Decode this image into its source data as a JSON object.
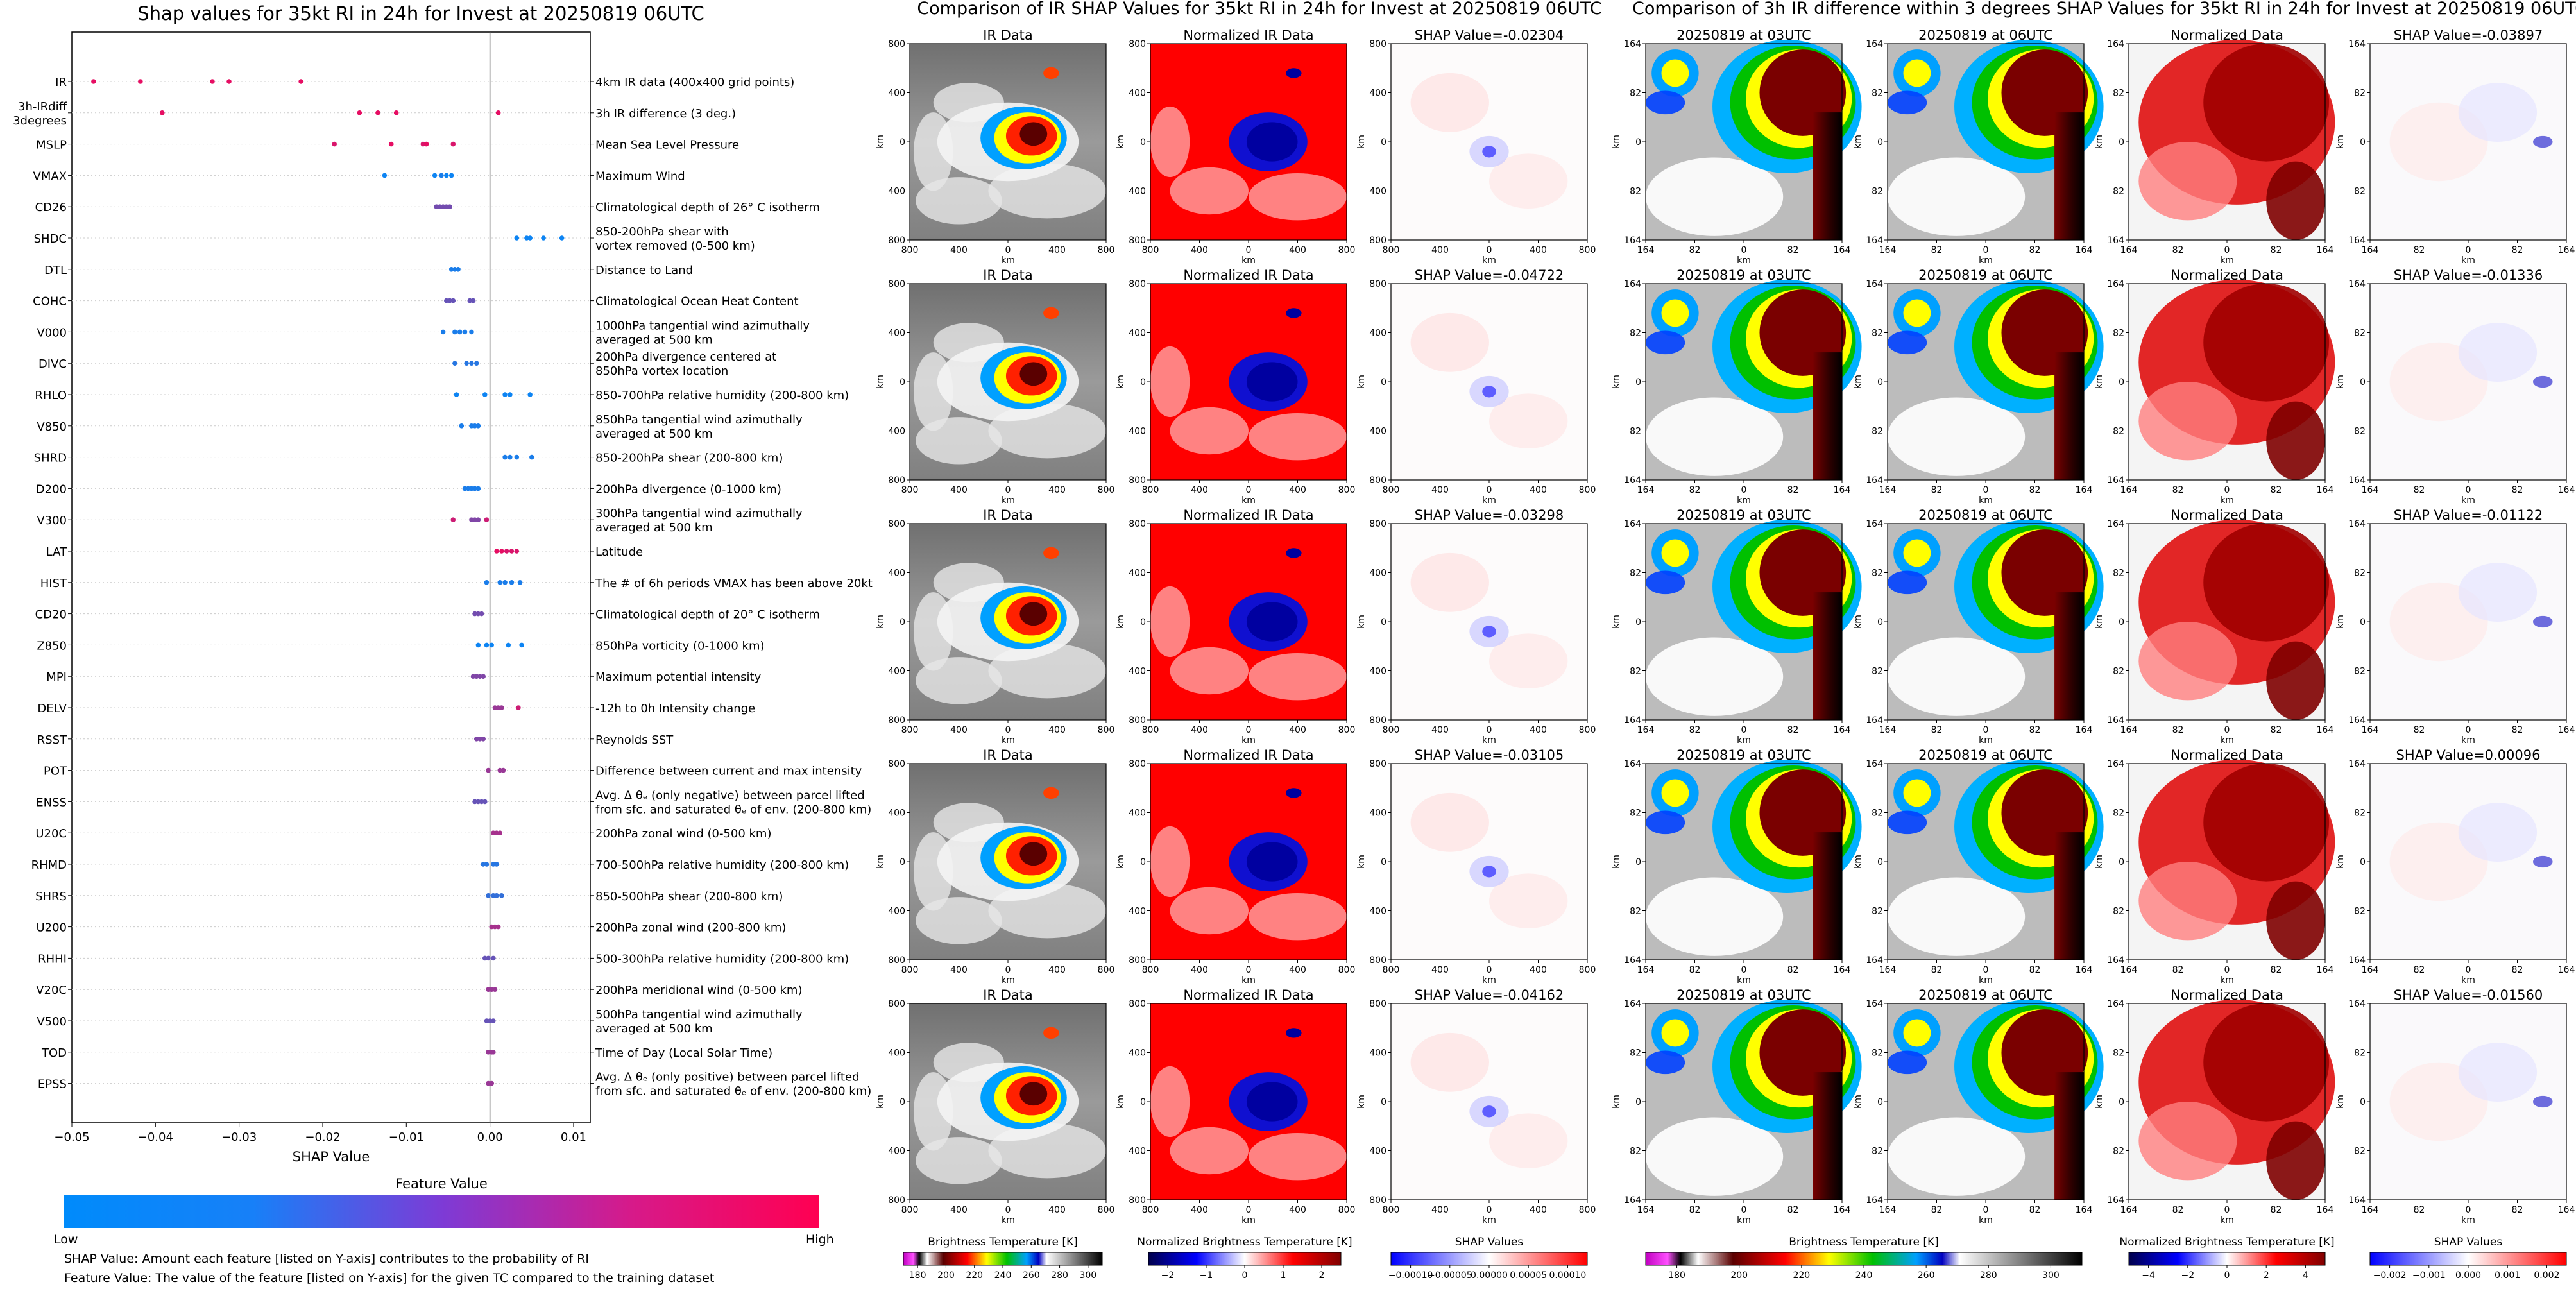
{
  "shap_panel": {
    "title": "Shap values for 35kt RI in 24h for Invest at 20250819 06UTC",
    "xlabel": "SHAP Value",
    "colorbar_title": "Feature Value",
    "colorbar_low": "Low",
    "colorbar_high": "High",
    "low_color": "#008bfb",
    "high_color": "#ff0052",
    "footnote_1": "SHAP Value: Amount each feature [listed on Y-axis] contributes to the probability of RI",
    "footnote_2": "Feature Value: The value of the feature [listed on Y-axis] for the given TC compared to the training dataset",
    "xticks": [
      "−0.05",
      "−0.04",
      "−0.03",
      "−0.02",
      "−0.01",
      "0.00",
      "0.01"
    ]
  },
  "ir_panel": {
    "title": "Comparison of IR SHAP Values for 35kt RI in 24h for Invest at 20250819 06UTC",
    "col_titles": [
      "IR Data",
      "Normalized IR Data"
    ],
    "shap_titles": [
      "SHAP Value=-0.02304",
      "SHAP Value=-0.04722",
      "SHAP Value=-0.03298",
      "SHAP Value=-0.03105",
      "SHAP Value=-0.04162"
    ],
    "ticks": [
      "800",
      "400",
      "0",
      "400",
      "800"
    ],
    "axis_label": "km",
    "cb_labels": [
      "Brightness Temperature [K]",
      "Normalized Brightness Temperature [K]",
      "SHAP Values"
    ],
    "cb_ticks": [
      [
        "180",
        "200",
        "220",
        "240",
        "260",
        "280",
        "300"
      ],
      [
        "−2",
        "−1",
        "0",
        "1",
        "2"
      ],
      [
        "−0.00010",
        "−0.00005",
        "0.00000",
        "0.00005",
        "0.00010"
      ]
    ]
  },
  "diff_panel": {
    "title": "Comparison of 3h IR difference within 3 degrees SHAP Values for 35kt RI in 24h for Invest at 20250819 06UTC",
    "col_titles": [
      "20250819 at 03UTC",
      "20250819 at 06UTC",
      "Normalized Data"
    ],
    "shap_titles": [
      "SHAP Value=-0.03897",
      "SHAP Value=-0.01336",
      "SHAP Value=-0.01122",
      "SHAP Value=0.00096",
      "SHAP Value=-0.01560"
    ],
    "ticks": [
      "164",
      "82",
      "0",
      "82",
      "164"
    ],
    "axis_label": "km",
    "cb_labels": [
      "Brightness Temperature [K]",
      "Normalized Brightness Temperature [K]",
      "SHAP Values"
    ],
    "cb_ticks": [
      [
        "180",
        "200",
        "220",
        "240",
        "260",
        "280",
        "300"
      ],
      [
        "−4",
        "−2",
        "0",
        "2",
        "4"
      ],
      [
        "−0.002",
        "−0.001",
        "0.000",
        "0.001",
        "0.002"
      ]
    ]
  },
  "chart_data": {
    "type": "scatter",
    "title": "Shap values for 35kt RI in 24h for Invest at 20250819 06UTC",
    "xlabel": "SHAP Value",
    "xlim": [
      -0.05,
      0.012
    ],
    "features": [
      {
        "code": "IR",
        "desc": [
          "4km IR data (400x400 grid points)"
        ],
        "points": [
          [
            -0.0474,
            0.9
          ],
          [
            -0.0418,
            0.9
          ],
          [
            -0.0332,
            0.9
          ],
          [
            -0.0312,
            0.9
          ],
          [
            -0.0226,
            0.9
          ]
        ]
      },
      {
        "code": [
          "3h-IRdiff",
          "3degrees"
        ],
        "desc": [
          "3h IR difference (3 deg.)"
        ],
        "points": [
          [
            -0.0392,
            0.9
          ],
          [
            -0.0156,
            0.9
          ],
          [
            -0.0134,
            0.9
          ],
          [
            -0.0112,
            0.9
          ],
          [
            0.001,
            0.9
          ]
        ]
      },
      {
        "code": "MSLP",
        "desc": [
          "Mean Sea Level Pressure"
        ],
        "points": [
          [
            -0.0186,
            0.85
          ],
          [
            -0.0118,
            0.9
          ],
          [
            -0.008,
            0.85
          ],
          [
            -0.0076,
            0.9
          ],
          [
            -0.0044,
            0.85
          ]
        ]
      },
      {
        "code": "VMAX",
        "desc": [
          "Maximum Wind"
        ],
        "points": [
          [
            -0.0126,
            0.05
          ],
          [
            -0.0066,
            0.05
          ],
          [
            -0.0058,
            0.1
          ],
          [
            -0.0052,
            0.05
          ],
          [
            -0.0046,
            0.05
          ]
        ]
      },
      {
        "code": "CD26",
        "desc": [
          "Climatological depth of 26° C isotherm"
        ],
        "points": [
          [
            -0.0064,
            0.45
          ],
          [
            -0.006,
            0.45
          ],
          [
            -0.0056,
            0.45
          ],
          [
            -0.0052,
            0.45
          ],
          [
            -0.0048,
            0.45
          ]
        ]
      },
      {
        "code": "SHDC",
        "desc": [
          "850-200hPa shear with",
          "vortex removed (0-500 km)"
        ],
        "points": [
          [
            0.0032,
            0.05
          ],
          [
            0.0044,
            0.05
          ],
          [
            0.0048,
            0.05
          ],
          [
            0.0064,
            0.05
          ],
          [
            0.0086,
            0.05
          ]
        ]
      },
      {
        "code": "DTL",
        "desc": [
          "Distance to Land"
        ],
        "points": [
          [
            -0.0046,
            0.1
          ],
          [
            -0.0042,
            0.1
          ],
          [
            -0.0038,
            0.1
          ]
        ]
      },
      {
        "code": "COHC",
        "desc": [
          "Climatological Ocean Heat Content"
        ],
        "points": [
          [
            -0.0052,
            0.4
          ],
          [
            -0.0048,
            0.4
          ],
          [
            -0.0044,
            0.4
          ],
          [
            -0.0024,
            0.4
          ],
          [
            -0.002,
            0.4
          ]
        ]
      },
      {
        "code": "V000",
        "desc": [
          "1000hPa tangential wind azimuthally",
          "averaged at 500 km"
        ],
        "points": [
          [
            -0.0056,
            0.1
          ],
          [
            -0.0042,
            0.1
          ],
          [
            -0.0036,
            0.1
          ],
          [
            -0.003,
            0.1
          ],
          [
            -0.0022,
            0.1
          ]
        ]
      },
      {
        "code": "DIVC",
        "desc": [
          "200hPa divergence centered at",
          "850hPa vortex location"
        ],
        "points": [
          [
            -0.0042,
            0.15
          ],
          [
            -0.0028,
            0.15
          ],
          [
            -0.0022,
            0.15
          ],
          [
            -0.0016,
            0.15
          ]
        ]
      },
      {
        "code": "RHLO",
        "desc": [
          "850-700hPa relative humidity (200-800 km)"
        ],
        "points": [
          [
            -0.004,
            0.05
          ],
          [
            -0.0006,
            0.05
          ],
          [
            0.0018,
            0.05
          ],
          [
            0.0024,
            0.05
          ],
          [
            0.0048,
            0.05
          ]
        ]
      },
      {
        "code": "V850",
        "desc": [
          "850hPa tangential wind azimuthally",
          "averaged at 500 km"
        ],
        "points": [
          [
            -0.0034,
            0.1
          ],
          [
            -0.0022,
            0.1
          ],
          [
            -0.0018,
            0.1
          ],
          [
            -0.0014,
            0.1
          ]
        ]
      },
      {
        "code": "SHRD",
        "desc": [
          "850-200hPa shear (200-800 km)"
        ],
        "points": [
          [
            0.0018,
            0.1
          ],
          [
            0.0024,
            0.1
          ],
          [
            0.0032,
            0.1
          ],
          [
            0.005,
            0.1
          ]
        ]
      },
      {
        "code": "D200",
        "desc": [
          "200hPa divergence (0-1000 km)"
        ],
        "points": [
          [
            -0.003,
            0.1
          ],
          [
            -0.0026,
            0.1
          ],
          [
            -0.0022,
            0.1
          ],
          [
            -0.0018,
            0.1
          ],
          [
            -0.0014,
            0.1
          ]
        ]
      },
      {
        "code": "V300",
        "desc": [
          "300hPa tangential wind azimuthally",
          "averaged at 500 km"
        ],
        "points": [
          [
            -0.0044,
            0.8
          ],
          [
            -0.0022,
            0.5
          ],
          [
            -0.0018,
            0.5
          ],
          [
            -0.0014,
            0.5
          ],
          [
            -0.0004,
            0.8
          ]
        ]
      },
      {
        "code": "LAT",
        "desc": [
          "Latitude"
        ],
        "points": [
          [
            0.0008,
            0.9
          ],
          [
            0.0014,
            0.9
          ],
          [
            0.002,
            0.85
          ],
          [
            0.0026,
            0.85
          ],
          [
            0.0032,
            0.85
          ]
        ]
      },
      {
        "code": "HIST",
        "desc": [
          "The # of 6h periods VMAX has been above 20kt"
        ],
        "points": [
          [
            -0.0004,
            0.1
          ],
          [
            0.0012,
            0.1
          ],
          [
            0.0018,
            0.1
          ],
          [
            0.0026,
            0.1
          ],
          [
            0.0036,
            0.1
          ]
        ]
      },
      {
        "code": "CD20",
        "desc": [
          "Climatological depth of 20° C isotherm"
        ],
        "points": [
          [
            -0.0018,
            0.45
          ],
          [
            -0.0014,
            0.45
          ],
          [
            -0.001,
            0.45
          ]
        ]
      },
      {
        "code": "Z850",
        "desc": [
          "850hPa vorticity (0-1000 km)"
        ],
        "points": [
          [
            -0.0014,
            0.05
          ],
          [
            -0.0004,
            0.05
          ],
          [
            0.0002,
            0.05
          ],
          [
            0.0022,
            0.05
          ],
          [
            0.0038,
            0.05
          ]
        ]
      },
      {
        "code": "MPI",
        "desc": [
          "Maximum potential intensity"
        ],
        "points": [
          [
            -0.002,
            0.5
          ],
          [
            -0.0016,
            0.5
          ],
          [
            -0.0012,
            0.5
          ],
          [
            -0.0008,
            0.5
          ]
        ]
      },
      {
        "code": "DELV",
        "desc": [
          "-12h to 0h Intensity change"
        ],
        "points": [
          [
            0.0006,
            0.6
          ],
          [
            0.001,
            0.6
          ],
          [
            0.0014,
            0.6
          ],
          [
            0.0034,
            0.8
          ]
        ]
      },
      {
        "code": "RSST",
        "desc": [
          "Reynolds SST"
        ],
        "points": [
          [
            -0.0016,
            0.5
          ],
          [
            -0.0012,
            0.5
          ],
          [
            -0.0008,
            0.5
          ]
        ]
      },
      {
        "code": "POT",
        "desc": [
          "Difference between current and max intensity"
        ],
        "points": [
          [
            -0.0002,
            0.6
          ],
          [
            0.0012,
            0.6
          ],
          [
            0.0016,
            0.6
          ]
        ]
      },
      {
        "code": "ENSS",
        "desc": [
          "Avg. Δ θₑ (only negative) between parcel lifted",
          "from sfc. and saturated θₑ of env. (200-800 km)"
        ],
        "points": [
          [
            -0.0018,
            0.4
          ],
          [
            -0.0014,
            0.4
          ],
          [
            -0.001,
            0.4
          ],
          [
            -0.0006,
            0.4
          ]
        ]
      },
      {
        "code": "U20C",
        "desc": [
          "200hPa zonal wind (0-500 km)"
        ],
        "points": [
          [
            0.0004,
            0.65
          ],
          [
            0.0008,
            0.65
          ],
          [
            0.0012,
            0.65
          ]
        ]
      },
      {
        "code": "RHMD",
        "desc": [
          "700-500hPa relative humidity (200-800 km)"
        ],
        "points": [
          [
            -0.0008,
            0.15
          ],
          [
            -0.0004,
            0.15
          ],
          [
            0.0004,
            0.15
          ],
          [
            0.0008,
            0.15
          ]
        ]
      },
      {
        "code": "SHRS",
        "desc": [
          "850-500hPa shear (200-800 km)"
        ],
        "points": [
          [
            -0.0002,
            0.2
          ],
          [
            0.0004,
            0.2
          ],
          [
            0.0008,
            0.2
          ],
          [
            0.0014,
            0.2
          ]
        ]
      },
      {
        "code": "U200",
        "desc": [
          "200hPa zonal wind (200-800 km)"
        ],
        "points": [
          [
            0.0002,
            0.65
          ],
          [
            0.0006,
            0.65
          ],
          [
            0.001,
            0.65
          ]
        ]
      },
      {
        "code": "RHHI",
        "desc": [
          "500-300hPa relative humidity (200-800 km)"
        ],
        "points": [
          [
            -0.0006,
            0.4
          ],
          [
            -0.0002,
            0.4
          ],
          [
            0.0004,
            0.4
          ]
        ]
      },
      {
        "code": "V20C",
        "desc": [
          "200hPa meridional wind (0-500 km)"
        ],
        "points": [
          [
            -0.0002,
            0.6
          ],
          [
            0.0002,
            0.6
          ],
          [
            0.0006,
            0.6
          ]
        ]
      },
      {
        "code": "V500",
        "desc": [
          "500hPa tangential wind azimuthally",
          "averaged at 500 km"
        ],
        "points": [
          [
            -0.0004,
            0.4
          ],
          [
            0.0,
            0.4
          ],
          [
            0.0004,
            0.4
          ]
        ]
      },
      {
        "code": "TOD",
        "desc": [
          "Time of Day (Local Solar Time)"
        ],
        "points": [
          [
            -0.0002,
            0.6
          ],
          [
            0.0002,
            0.6
          ],
          [
            0.0004,
            0.6
          ]
        ]
      },
      {
        "code": "EPSS",
        "desc": [
          "Avg. Δ θₑ (only positive) between parcel lifted",
          "from sfc. and saturated θₑ of env. (200-800 km)"
        ],
        "points": [
          [
            -0.0002,
            0.6
          ],
          [
            0.0002,
            0.6
          ]
        ]
      }
    ]
  }
}
